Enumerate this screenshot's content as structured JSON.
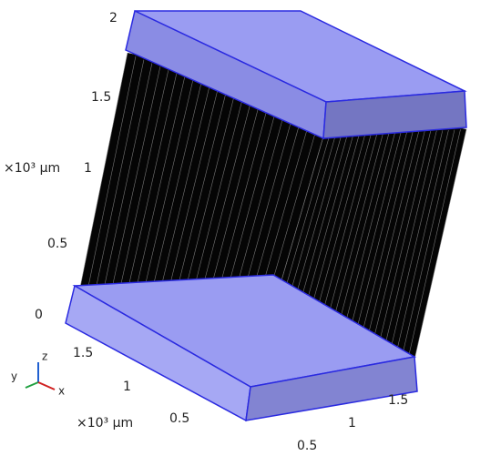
{
  "z_axis": {
    "ticks": [
      "2",
      "1.5",
      "1",
      "0.5",
      "0"
    ],
    "unit_label": "×10³ μm"
  },
  "y_axis": {
    "ticks": [
      "1.5",
      "1",
      "0.5"
    ],
    "unit_label": "×10³ μm"
  },
  "x_axis": {
    "ticks": [
      "0.5",
      "1",
      "1.5"
    ]
  },
  "triad": {
    "z": "z",
    "y": "y",
    "x": "x"
  }
}
